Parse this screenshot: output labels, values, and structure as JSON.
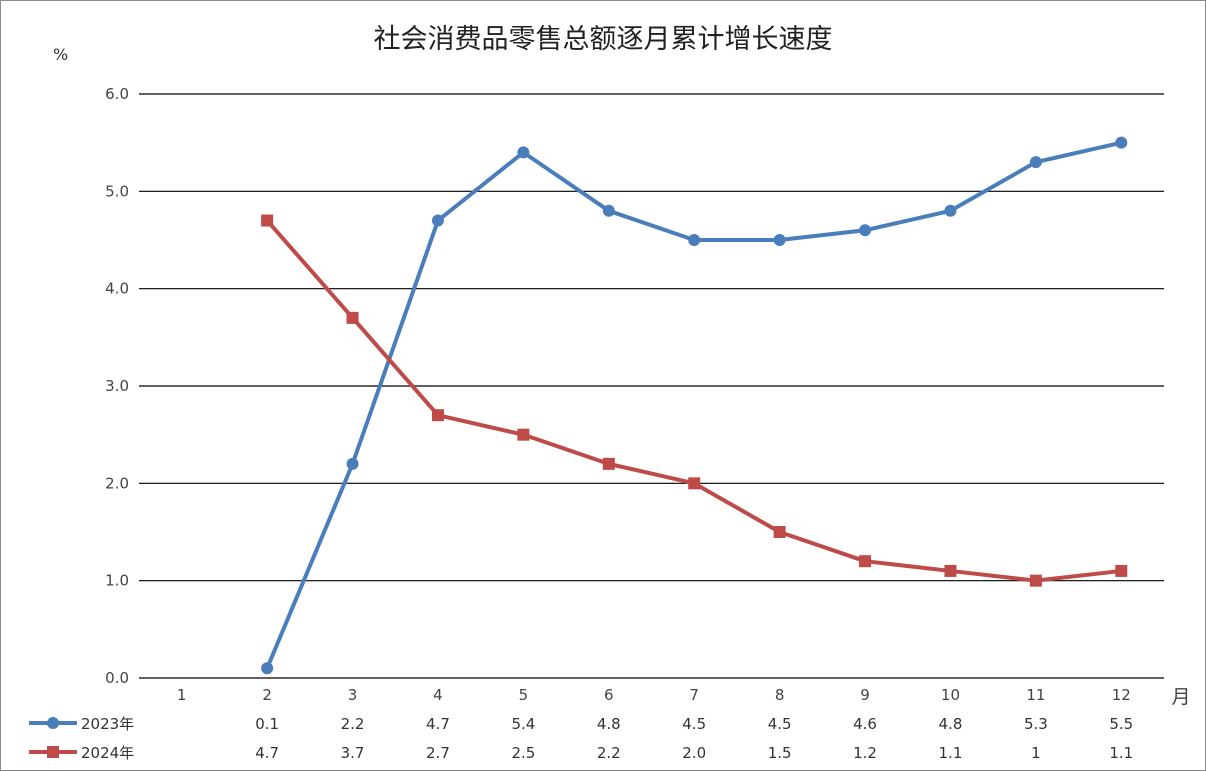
{
  "chart_data": {
    "type": "line",
    "title": "社会消费品零售总额逐月累计增长速度",
    "ylabel": "%",
    "xlabel": "月",
    "categories": [
      "1",
      "2",
      "3",
      "4",
      "5",
      "6",
      "7",
      "8",
      "9",
      "10",
      "11",
      "12"
    ],
    "ylim": [
      0,
      6
    ],
    "yticks": [
      "0.0",
      "1.0",
      "2.0",
      "3.0",
      "4.0",
      "5.0",
      "6.0"
    ],
    "grid": true,
    "legend_placement": "bottom-left data table",
    "series": [
      {
        "name": "2023年",
        "color": "#4a7ebb",
        "marker": "circle",
        "values": [
          null,
          0.1,
          2.2,
          4.7,
          5.4,
          4.8,
          4.5,
          4.5,
          4.6,
          4.8,
          5.3,
          5.5
        ],
        "labels": [
          "",
          "0.1",
          "2.2",
          "4.7",
          "5.4",
          "4.8",
          "4.5",
          "4.5",
          "4.6",
          "4.8",
          "5.3",
          "5.5"
        ]
      },
      {
        "name": "2024年",
        "color": "#be4b48",
        "marker": "square",
        "values": [
          null,
          4.7,
          3.7,
          2.7,
          2.5,
          2.2,
          2.0,
          1.5,
          1.2,
          1.1,
          1.0,
          1.1
        ],
        "labels": [
          "",
          "4.7",
          "3.7",
          "2.7",
          "2.5",
          "2.2",
          "2.0",
          "1.5",
          "1.2",
          "1.1",
          "1",
          "1.1"
        ]
      }
    ]
  }
}
